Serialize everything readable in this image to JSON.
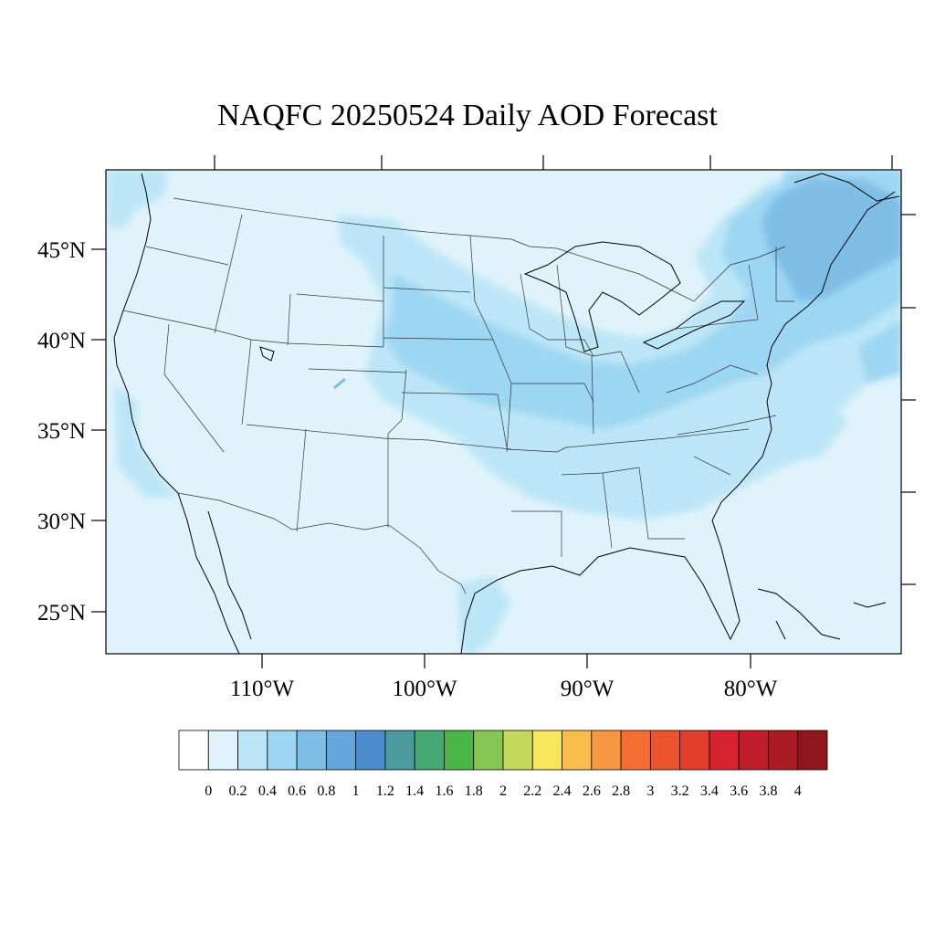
{
  "title": "NAQFC 20250524 Daily AOD Forecast",
  "map": {
    "lat_labels": [
      "45°N",
      "40°N",
      "35°N",
      "30°N",
      "25°N"
    ],
    "lon_labels": [
      "110°W",
      "100°W",
      "90°W",
      "80°W"
    ],
    "lat_ticks": [
      45,
      40,
      35,
      30,
      25
    ],
    "lon_ticks": [
      -110,
      -100,
      -90,
      -80
    ]
  },
  "colorbar": {
    "labels": [
      "0",
      "0.2",
      "0.4",
      "0.6",
      "0.8",
      "1",
      "1.2",
      "1.4",
      "1.6",
      "1.8",
      "2",
      "2.2",
      "2.4",
      "2.6",
      "2.8",
      "3",
      "3.2",
      "3.4",
      "3.6",
      "3.8",
      "4"
    ],
    "colors": [
      "#ffffff",
      "#e0f3fb",
      "#bce6f7",
      "#9dd6f2",
      "#7fbde5",
      "#63a6da",
      "#4a8ccc",
      "#4a9a9e",
      "#46a872",
      "#4cb548",
      "#88c653",
      "#c4d85c",
      "#f8e65c",
      "#f9bd4d",
      "#f79742",
      "#f46d33",
      "#ec542d",
      "#e13e2b",
      "#d72330",
      "#c01d2a",
      "#ac1b24",
      "#8e161c"
    ]
  },
  "colors": {
    "background_aod": "#e0f3fb",
    "aod_02_04": "#bce6f7",
    "aod_04_06": "#9dd6f2",
    "aod_06_08": "#7fbde5"
  }
}
